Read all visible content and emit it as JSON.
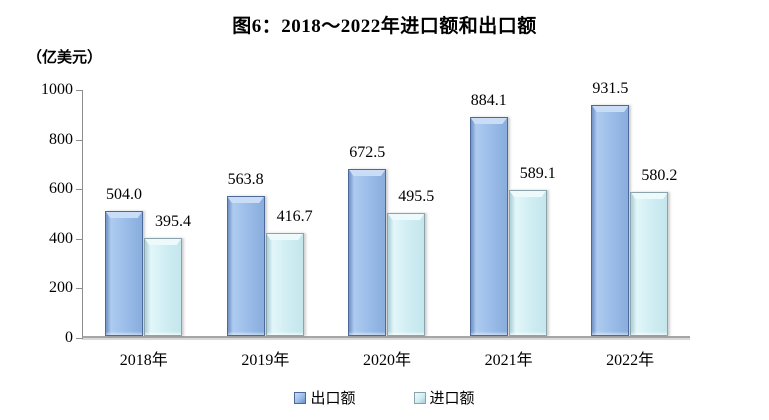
{
  "title": "图6：2018～2022年进口额和出口额",
  "unit_label": "（亿美元）",
  "chart_data": {
    "type": "bar",
    "title": "图6：2018～2022年进口额和出口额",
    "ylabel": "（亿美元）",
    "categories": [
      "2018年",
      "2019年",
      "2020年",
      "2021年",
      "2022年"
    ],
    "series": [
      {
        "name": "出口额",
        "values": [
          504.0,
          563.8,
          672.5,
          884.1,
          931.5
        ],
        "value_labels": [
          "504.0",
          "563.8",
          "672.5",
          "884.1",
          "931.5"
        ],
        "color": "#9bbde9",
        "edge_color": "#4c699a"
      },
      {
        "name": "进口额",
        "values": [
          395.4,
          416.7,
          495.5,
          589.1,
          580.2
        ],
        "value_labels": [
          "395.4",
          "416.7",
          "495.5",
          "589.1",
          "580.2"
        ],
        "color": "#d0eef3",
        "edge_color": "#8ba4ab"
      }
    ],
    "ylim": [
      0,
      1000
    ],
    "yticks": [
      0,
      200,
      400,
      600,
      800,
      1000
    ],
    "ytick_labels": [
      "0",
      "200",
      "400",
      "600",
      "800",
      "1000"
    ],
    "grid": false,
    "legend_position": "bottom",
    "axis_color": "#8c8c8c",
    "baseline_color": "#a6a6a6"
  },
  "legend": {
    "items": [
      {
        "label": "出口额"
      },
      {
        "label": "进口额"
      }
    ]
  }
}
